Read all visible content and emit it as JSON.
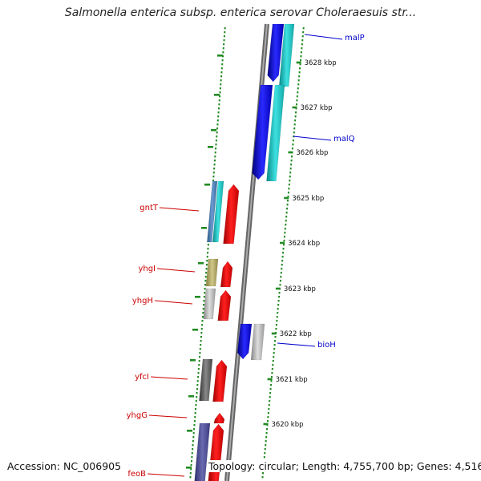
{
  "title": "Salmonella enterica subsp. enterica serovar Choleraesuis str...",
  "footer": {
    "accession": "Accession: NC_006905",
    "topology": "Topology: circular; Length: 4,755,700 bp; Genes: 4,516"
  },
  "colors": {
    "forward_gene": "#ff0000",
    "reverse_gene_blue": "#0000ee",
    "reverse_gene_cyan": "#19c7c7",
    "backbone": "#888888",
    "gc_dots": "#228b22",
    "label_left": "#cc0000",
    "label_right": "#0000cc"
  },
  "ruler_ticks": [
    {
      "label": "3628 kbp"
    },
    {
      "label": "3627 kbp"
    },
    {
      "label": "3626 kbp"
    },
    {
      "label": "3625 kbp"
    },
    {
      "label": "3624 kbp"
    },
    {
      "label": "3623 kbp"
    },
    {
      "label": "3622 kbp"
    },
    {
      "label": "3621 kbp"
    },
    {
      "label": "3620 kbp"
    }
  ],
  "gene_labels_right": [
    {
      "name": "malP"
    },
    {
      "name": "malQ"
    },
    {
      "name": "bioH"
    }
  ],
  "gene_labels_left": [
    {
      "name": "gntT"
    },
    {
      "name": "yhgI"
    },
    {
      "name": "yhgH"
    },
    {
      "name": "yfcI"
    },
    {
      "name": "yhgG"
    },
    {
      "name": "feoB"
    }
  ]
}
